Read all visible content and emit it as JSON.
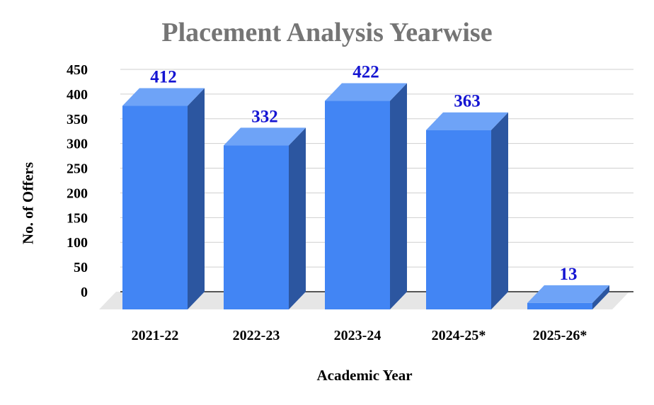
{
  "chart_data": {
    "type": "bar",
    "title": "Placement Analysis Yearwise",
    "xlabel": "Academic Year",
    "ylabel": "No. of Offers",
    "categories": [
      "2021-22",
      "2022-23",
      "2023-24",
      "2024-25*",
      "2025-26*"
    ],
    "values": [
      412,
      332,
      422,
      363,
      13
    ],
    "yticks": [
      "0",
      "50",
      "100",
      "150",
      "200",
      "250",
      "300",
      "350",
      "400",
      "450"
    ],
    "ylim": [
      0,
      450
    ],
    "grid": true,
    "legend": "none",
    "bar_front_color": "#4285f4",
    "bar_top_color": "#6ea3f7",
    "bar_side_color": "#2c56a0"
  }
}
